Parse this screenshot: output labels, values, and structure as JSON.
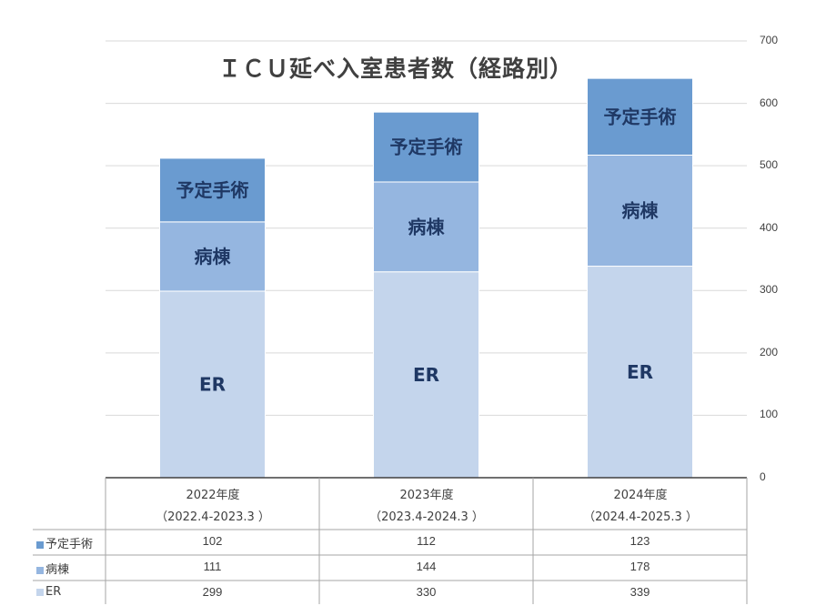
{
  "chart_data": {
    "type": "bar",
    "stacked": true,
    "title": "ＩＣＵ延べ入室患者数（経路別）",
    "categories": [
      "2022年度",
      "2023年度",
      "2024年度"
    ],
    "category_subtitles": [
      "（2022.4-2023.3 ）",
      "（2023.4-2024.3 ）",
      "（2024.4-2025.3 ）"
    ],
    "series": [
      {
        "name": "ER",
        "values": [
          299,
          330,
          339
        ],
        "color": "#c4d5ec",
        "bar_label": "ER"
      },
      {
        "name": "病棟",
        "values": [
          111,
          144,
          178
        ],
        "color": "#95b6e0",
        "bar_label": "病棟"
      },
      {
        "name": "予定手術",
        "values": [
          102,
          112,
          123
        ],
        "color": "#6a9bd0",
        "bar_label": "予定手術"
      }
    ],
    "table_order": [
      "予定手術",
      "病棟",
      "ER"
    ],
    "ylim": [
      0,
      700
    ],
    "yticks": [
      0,
      100,
      200,
      300,
      400,
      500,
      600,
      700
    ],
    "y_axis_position": "right",
    "grid": true,
    "legend": "data-table"
  },
  "colors": {
    "bar_label_text": "#1f3864",
    "grid": "#d9d9d9",
    "axis_text": "#404040"
  }
}
